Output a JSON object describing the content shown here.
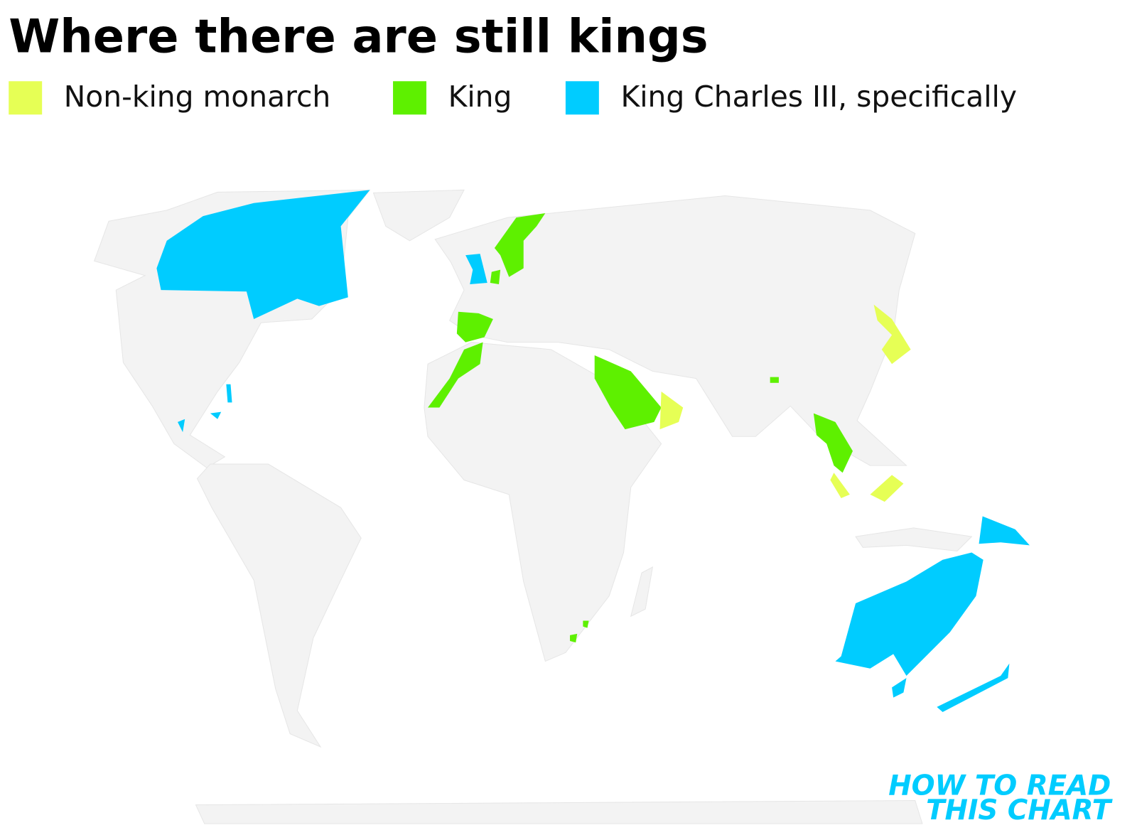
{
  "title": "Where there are still kings",
  "legend": [
    {
      "label": "Non-king monarch",
      "color": "#e6ff55"
    },
    {
      "label": "King",
      "color": "#5ef000"
    },
    {
      "label": "King Charles III, specifically",
      "color": "#00ccff"
    }
  ],
  "brand": [
    "HOW TO READ",
    "THIS CHART"
  ]
}
